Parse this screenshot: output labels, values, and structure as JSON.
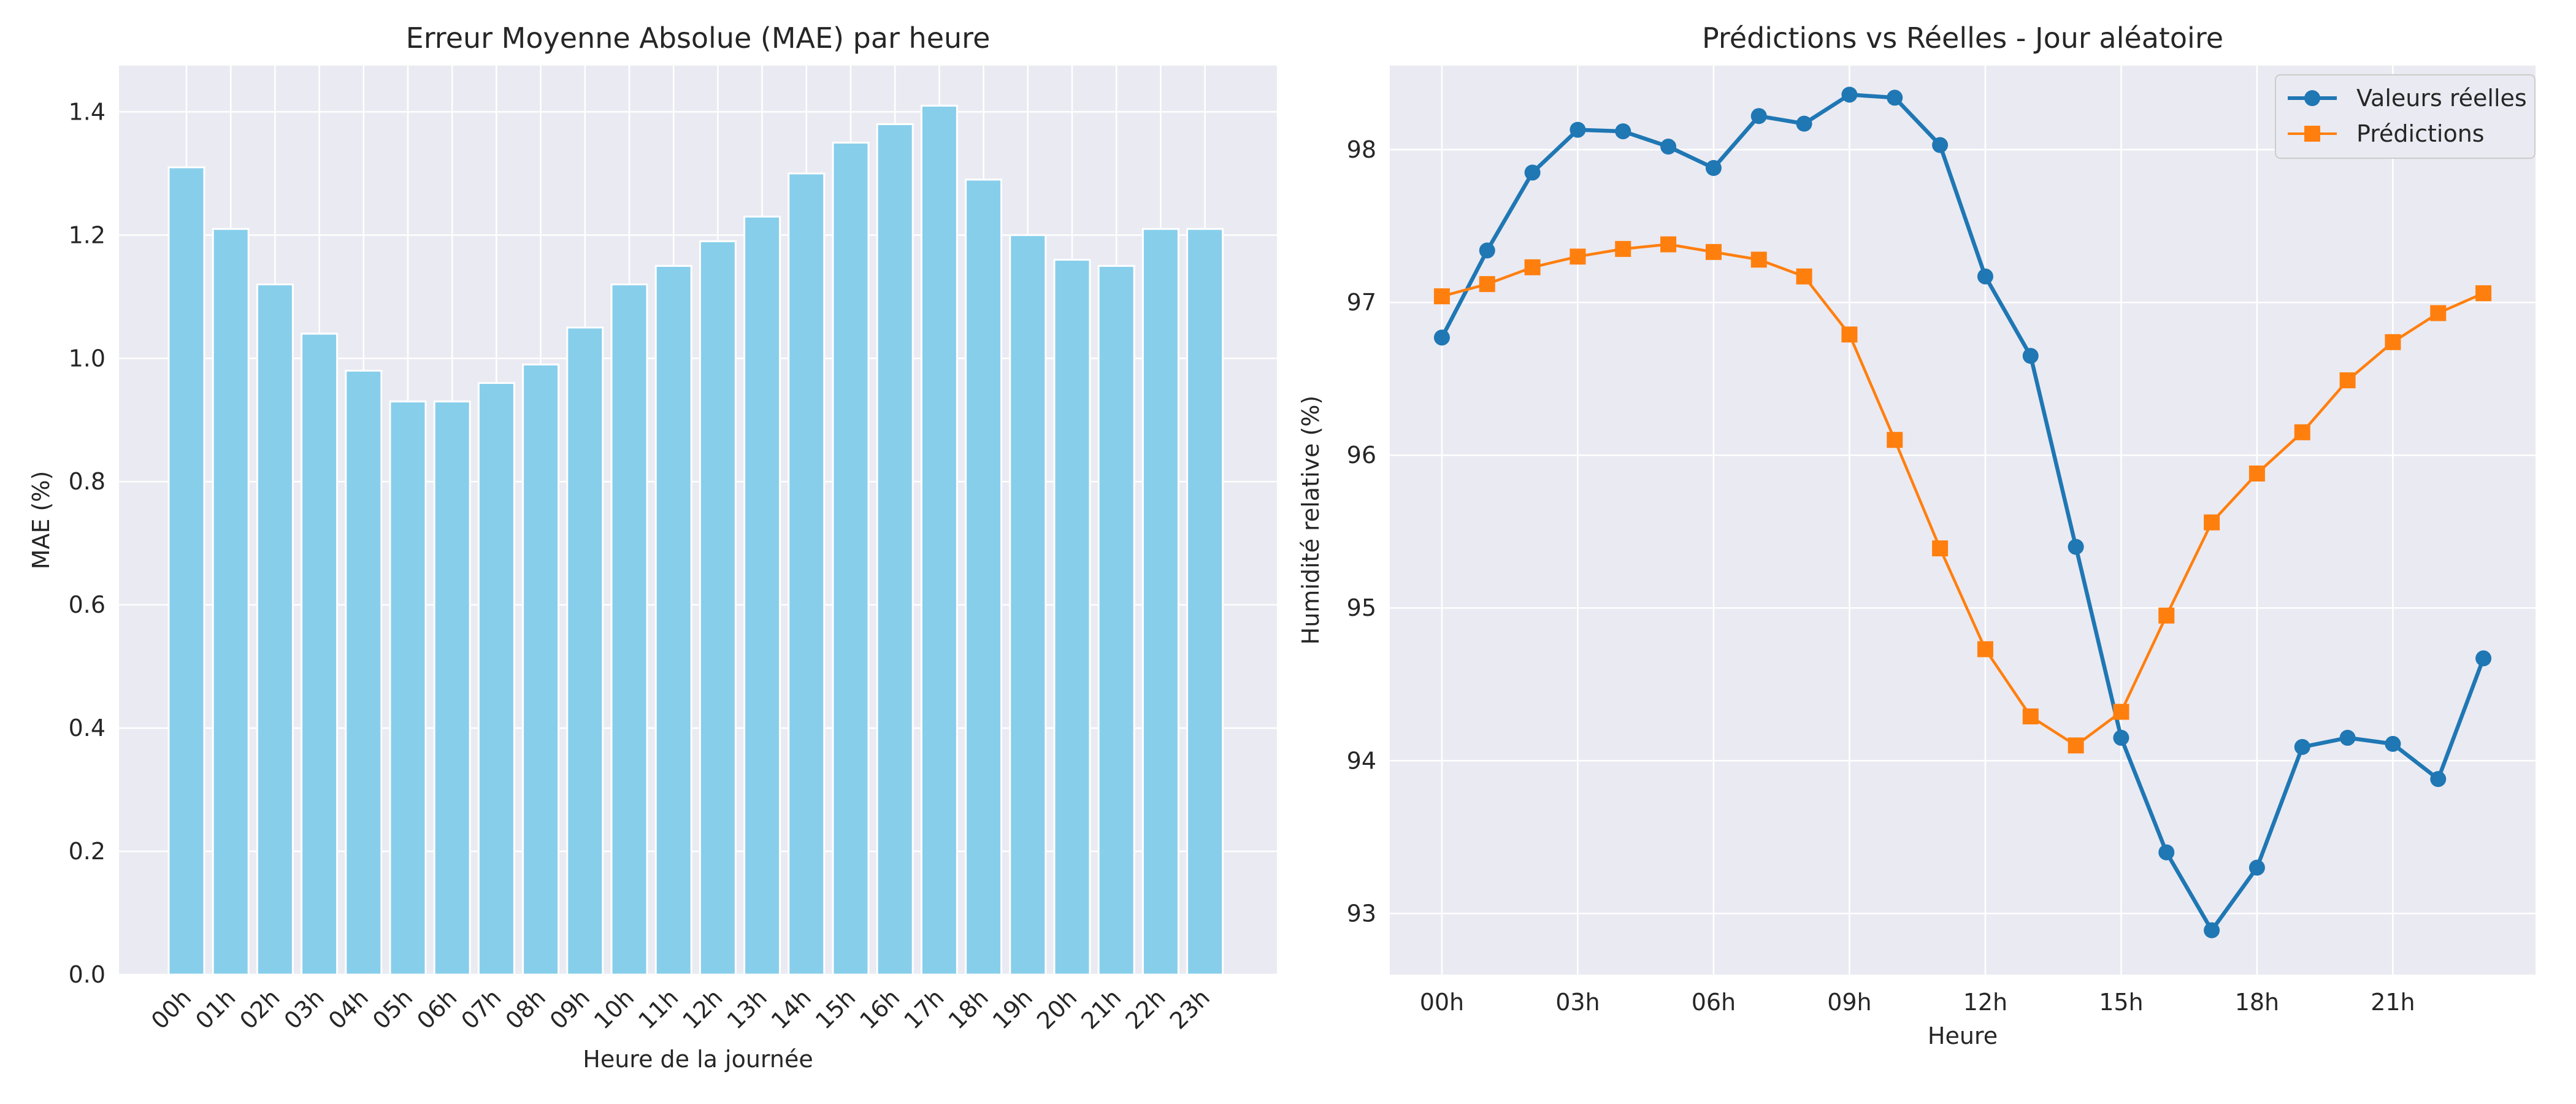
{
  "chart_data": [
    {
      "type": "bar",
      "title": "Erreur Moyenne Absolue (MAE) par heure",
      "xlabel": "Heure de la journée",
      "ylabel": "MAE (%)",
      "categories": [
        "00h",
        "01h",
        "02h",
        "03h",
        "04h",
        "05h",
        "06h",
        "07h",
        "08h",
        "09h",
        "10h",
        "11h",
        "12h",
        "13h",
        "14h",
        "15h",
        "16h",
        "17h",
        "18h",
        "19h",
        "20h",
        "21h",
        "22h",
        "23h"
      ],
      "values": [
        1.31,
        1.21,
        1.12,
        1.04,
        0.98,
        0.93,
        0.93,
        0.96,
        0.99,
        1.05,
        1.12,
        1.15,
        1.19,
        1.23,
        1.3,
        1.35,
        1.38,
        1.41,
        1.29,
        1.2,
        1.16,
        1.15,
        1.21,
        1.21
      ],
      "ylim": [
        0,
        1.475
      ],
      "yticks": [
        "0.0",
        "0.2",
        "0.4",
        "0.6",
        "0.8",
        "1.0",
        "1.2",
        "1.4"
      ],
      "grid": true,
      "color": "#87ceeb"
    },
    {
      "type": "line",
      "title": "Prédictions vs Réelles - Jour aléatoire",
      "xlabel": "Heure",
      "ylabel": "Humidité relative (%)",
      "x": [
        0,
        1,
        2,
        3,
        4,
        5,
        6,
        7,
        8,
        9,
        10,
        11,
        12,
        13,
        14,
        15,
        16,
        17,
        18,
        19,
        20,
        21,
        22,
        23
      ],
      "xticks": [
        0,
        3,
        6,
        9,
        12,
        15,
        18,
        21
      ],
      "xticklabels": [
        "00h",
        "03h",
        "06h",
        "09h",
        "12h",
        "15h",
        "18h",
        "21h"
      ],
      "xlim": [
        -1.15,
        24.15
      ],
      "ylim": [
        92.6,
        98.55
      ],
      "yticks": [
        93,
        94,
        95,
        96,
        97,
        98
      ],
      "grid": true,
      "legend": "top-right",
      "series": [
        {
          "name": "Valeurs réelles",
          "color": "#1f77b4",
          "marker": "circle",
          "values": [
            96.77,
            97.34,
            97.85,
            98.13,
            98.12,
            98.02,
            97.88,
            98.22,
            98.17,
            98.36,
            98.34,
            98.03,
            97.17,
            96.65,
            95.4,
            94.15,
            93.4,
            92.89,
            93.3,
            94.09,
            94.15,
            94.11,
            93.88,
            94.67
          ]
        },
        {
          "name": "Prédictions",
          "color": "#ff7f0e",
          "marker": "square",
          "values": [
            97.04,
            97.12,
            97.23,
            97.3,
            97.35,
            97.38,
            97.33,
            97.28,
            97.17,
            96.79,
            96.1,
            95.39,
            94.73,
            94.29,
            94.1,
            94.32,
            94.95,
            95.56,
            95.88,
            96.15,
            96.49,
            96.74,
            96.93,
            97.06
          ]
        }
      ]
    }
  ]
}
